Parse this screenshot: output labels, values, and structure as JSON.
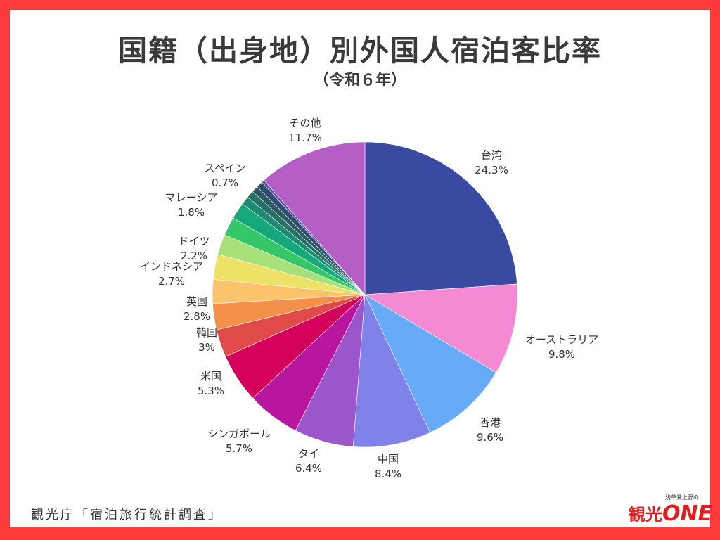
{
  "chart_data": {
    "type": "pie",
    "title": "国籍（出身地）別外国人宿泊客比率",
    "subtitle": "（令和６年）",
    "start": "12 o'clock, clockwise",
    "slices": [
      {
        "label": "台湾",
        "value_text": "24.3%",
        "value": 24.3,
        "color": "#3a4aa0"
      },
      {
        "label": "オーストラリア",
        "value_text": "9.8%",
        "value": 9.8,
        "color": "#f48ad3"
      },
      {
        "label": "香港",
        "value_text": "9.6%",
        "value": 9.6,
        "color": "#66aaf8"
      },
      {
        "label": "中国",
        "value_text": "8.4%",
        "value": 8.4,
        "color": "#7f82e8"
      },
      {
        "label": "タイ",
        "value_text": "6.4%",
        "value": 6.4,
        "color": "#9b56cc"
      },
      {
        "label": "シンガポール",
        "value_text": "5.7%",
        "value": 5.7,
        "color": "#b8169e"
      },
      {
        "label": "米国",
        "value_text": "5.3%",
        "value": 5.3,
        "color": "#d4005c"
      },
      {
        "label": "韓国",
        "value_text": "3%",
        "value": 3.0,
        "color": "#e04a48"
      },
      {
        "label": "英国",
        "value_text": "2.8%",
        "value": 2.8,
        "color": "#f4904a"
      },
      {
        "label": "",
        "value_text": "",
        "value": 2.6,
        "color": "#fbc36c"
      },
      {
        "label": "インドネシア",
        "value_text": "2.7%",
        "value": 2.7,
        "color": "#eee266"
      },
      {
        "label": "ドイツ",
        "value_text": "2.2%",
        "value": 2.2,
        "color": "#a8e07a"
      },
      {
        "label": "",
        "value_text": "",
        "value": 2.0,
        "color": "#36c66a"
      },
      {
        "label": "マレーシア",
        "value_text": "1.8%",
        "value": 1.8,
        "color": "#14a87a"
      },
      {
        "label": "",
        "value_text": "",
        "value": 0.9,
        "color": "#1e8a72"
      },
      {
        "label": "",
        "value_text": "",
        "value": 0.8,
        "color": "#277066"
      },
      {
        "label": "",
        "value_text": "",
        "value": 0.7,
        "color": "#2b5a62"
      },
      {
        "label": "スペイン",
        "value_text": "0.7%",
        "value": 0.7,
        "color": "#304a72"
      },
      {
        "label": "",
        "value_text": "",
        "value": 0.3,
        "color": "#5a52a8"
      },
      {
        "label": "その他",
        "value_text": "11.7%",
        "value": 11.7,
        "color": "#b45ec6"
      }
    ]
  },
  "source": "観光庁「宿泊旅行統計調査」",
  "logo": {
    "sub": "浅草鶯上野の",
    "main": "観光",
    "accent": "ONE"
  },
  "colors": {
    "border": "#ff3a3a",
    "background": "#ffffff"
  }
}
